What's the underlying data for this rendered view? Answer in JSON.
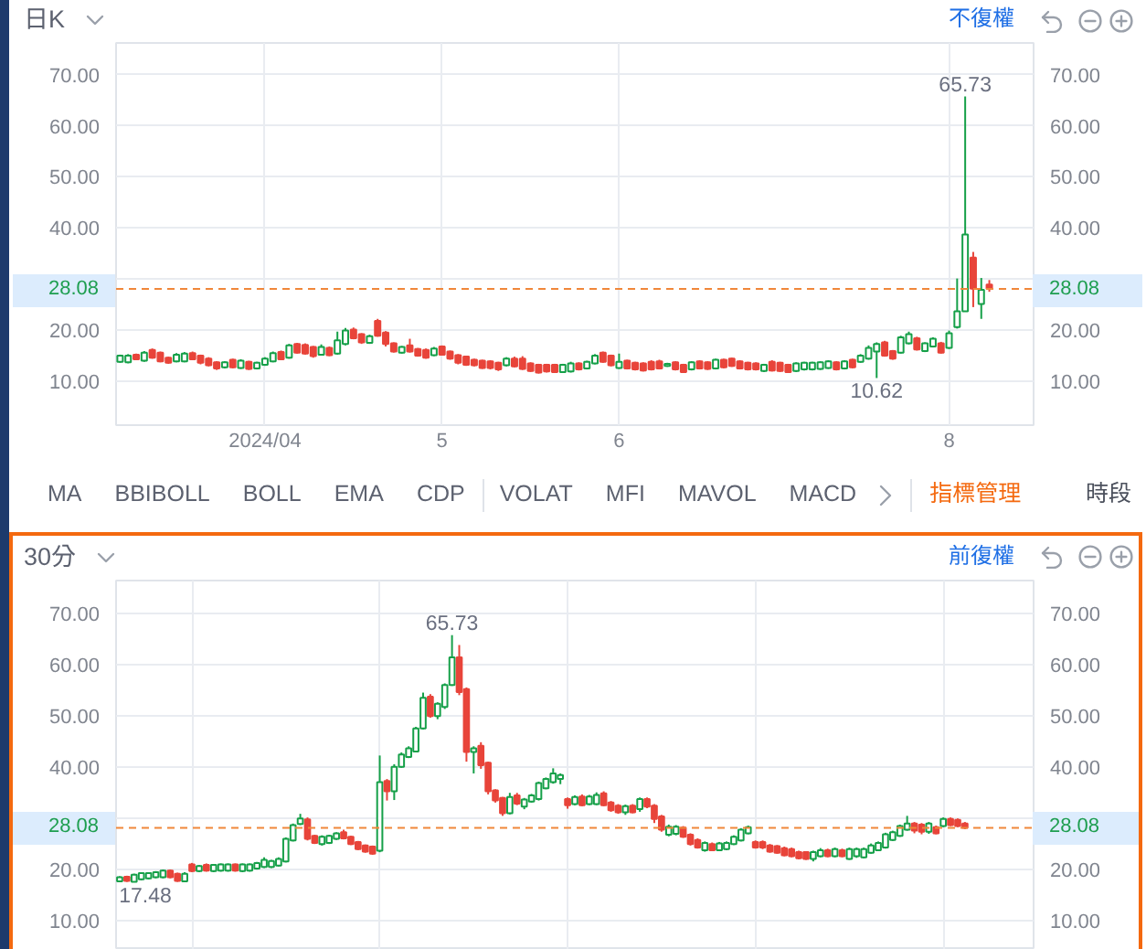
{
  "chart_data": [
    {
      "type": "candlestick",
      "title": "日K",
      "subtitle": "不復權",
      "categories": [
        null,
        null,
        null,
        null,
        null,
        null,
        null,
        null,
        null,
        null,
        null,
        null,
        null,
        null,
        null,
        null,
        null,
        null,
        "2024/04",
        null,
        null,
        null,
        null,
        null,
        null,
        null,
        null,
        null,
        null,
        null,
        null,
        null,
        null,
        null,
        null,
        null,
        null,
        null,
        null,
        null,
        "5",
        null,
        null,
        null,
        null,
        null,
        null,
        null,
        null,
        null,
        null,
        null,
        null,
        null,
        null,
        null,
        null,
        null,
        null,
        null,
        null,
        null,
        "6",
        null,
        null,
        null,
        null,
        null,
        null,
        null,
        null,
        null,
        null,
        null,
        null,
        null,
        null,
        null,
        null,
        null,
        null,
        null,
        null,
        null,
        null,
        null,
        null,
        null,
        null,
        null,
        null,
        null,
        null,
        null,
        null,
        null,
        null,
        null,
        null,
        null,
        null,
        null,
        null,
        "8",
        null,
        null,
        null,
        null,
        null,
        null,
        null,
        null,
        null,
        null
      ],
      "ohlc": [
        [
          13.8,
          15.2,
          13.6,
          15.0
        ],
        [
          13.7,
          15.3,
          13.5,
          15.0
        ],
        [
          15.2,
          15.4,
          14.1,
          14.3
        ],
        [
          14.0,
          15.9,
          13.8,
          15.6
        ],
        [
          16.1,
          16.4,
          14.4,
          14.6
        ],
        [
          15.6,
          15.8,
          13.7,
          13.9
        ],
        [
          14.6,
          14.8,
          13.4,
          13.6
        ],
        [
          13.9,
          15.5,
          13.7,
          15.2
        ],
        [
          13.9,
          15.7,
          13.7,
          15.4
        ],
        [
          15.5,
          15.8,
          14.1,
          14.3
        ],
        [
          15.0,
          15.2,
          13.3,
          13.6
        ],
        [
          14.4,
          14.7,
          12.9,
          13.1
        ],
        [
          13.7,
          13.9,
          12.2,
          12.5
        ],
        [
          12.7,
          13.9,
          12.5,
          13.7
        ],
        [
          14.2,
          14.4,
          12.5,
          12.7
        ],
        [
          12.6,
          14.3,
          12.4,
          14.0
        ],
        [
          13.8,
          14.0,
          12.2,
          12.4
        ],
        [
          12.5,
          13.8,
          12.3,
          13.6
        ],
        [
          13.2,
          14.7,
          13.0,
          14.4
        ],
        [
          13.9,
          15.8,
          13.7,
          15.5
        ],
        [
          15.7,
          16.0,
          14.1,
          14.3
        ],
        [
          14.6,
          17.3,
          14.4,
          17.0
        ],
        [
          17.3,
          17.5,
          15.4,
          15.6
        ],
        [
          17.1,
          17.4,
          15.2,
          15.4
        ],
        [
          16.7,
          16.9,
          14.6,
          14.9
        ],
        [
          15.2,
          17.2,
          15.0,
          16.7
        ],
        [
          16.5,
          16.8,
          14.9,
          15.1
        ],
        [
          15.4,
          19.7,
          15.2,
          18.0
        ],
        [
          17.3,
          20.4,
          17.0,
          19.9
        ],
        [
          20.1,
          20.5,
          18.2,
          18.4
        ],
        [
          19.2,
          19.4,
          17.3,
          17.6
        ],
        [
          17.5,
          19.1,
          17.3,
          18.8
        ],
        [
          21.8,
          22.2,
          18.7,
          18.9
        ],
        [
          19.5,
          19.8,
          16.8,
          17.3
        ],
        [
          17.4,
          17.6,
          15.6,
          15.8
        ],
        [
          15.6,
          16.9,
          15.4,
          16.7
        ],
        [
          17.0,
          18.3,
          15.6,
          15.8
        ],
        [
          16.3,
          16.5,
          14.8,
          15.0
        ],
        [
          16.1,
          16.4,
          14.4,
          14.6
        ],
        [
          15.1,
          16.7,
          14.9,
          16.4
        ],
        [
          16.8,
          17.0,
          15.0,
          15.2
        ],
        [
          15.8,
          16.0,
          14.2,
          14.4
        ],
        [
          15.1,
          15.3,
          13.3,
          13.6
        ],
        [
          14.8,
          15.0,
          13.0,
          13.2
        ],
        [
          14.2,
          14.4,
          12.9,
          13.1
        ],
        [
          14.0,
          14.2,
          12.4,
          12.6
        ],
        [
          13.9,
          14.1,
          12.3,
          12.6
        ],
        [
          13.6,
          13.8,
          12.0,
          12.3
        ],
        [
          13.1,
          14.7,
          12.9,
          14.4
        ],
        [
          14.4,
          14.8,
          12.7,
          12.9
        ],
        [
          14.4,
          14.9,
          12.2,
          12.4
        ],
        [
          13.5,
          13.7,
          11.8,
          12.0
        ],
        [
          13.2,
          13.4,
          11.5,
          11.7
        ],
        [
          13.2,
          13.4,
          11.7,
          11.9
        ],
        [
          13.2,
          13.4,
          11.6,
          11.8
        ],
        [
          11.8,
          13.4,
          11.6,
          13.2
        ],
        [
          11.9,
          13.8,
          11.7,
          13.5
        ],
        [
          13.5,
          13.7,
          12.1,
          12.3
        ],
        [
          12.5,
          14.0,
          12.3,
          13.8
        ],
        [
          13.5,
          15.3,
          13.3,
          15.0
        ],
        [
          15.6,
          15.8,
          13.6,
          13.8
        ],
        [
          15.0,
          15.2,
          12.9,
          13.1
        ],
        [
          12.6,
          15.4,
          12.4,
          13.8
        ],
        [
          14.0,
          14.2,
          12.3,
          12.5
        ],
        [
          13.6,
          13.8,
          12.1,
          12.3
        ],
        [
          13.5,
          13.7,
          11.9,
          12.1
        ],
        [
          13.8,
          14.1,
          12.1,
          12.3
        ],
        [
          13.9,
          14.2,
          12.3,
          12.5
        ],
        [
          13.0,
          13.6,
          12.8,
          13.4
        ],
        [
          13.7,
          13.9,
          12.1,
          12.3
        ],
        [
          13.2,
          13.4,
          11.6,
          11.8
        ],
        [
          12.3,
          13.9,
          12.1,
          13.7
        ],
        [
          13.9,
          14.1,
          12.3,
          12.5
        ],
        [
          13.7,
          13.9,
          12.2,
          12.4
        ],
        [
          12.5,
          14.4,
          12.3,
          14.2
        ],
        [
          14.2,
          14.4,
          12.5,
          12.7
        ],
        [
          14.4,
          14.6,
          12.8,
          13.0
        ],
        [
          13.9,
          14.1,
          12.3,
          12.5
        ],
        [
          13.6,
          13.8,
          12.1,
          12.3
        ],
        [
          13.5,
          13.7,
          12.1,
          12.3
        ],
        [
          12.0,
          13.4,
          11.8,
          13.2
        ],
        [
          13.8,
          14.1,
          11.9,
          12.1
        ],
        [
          13.6,
          13.8,
          11.8,
          12.0
        ],
        [
          13.2,
          13.4,
          11.6,
          11.8
        ],
        [
          12.0,
          13.7,
          11.8,
          13.5
        ],
        [
          12.3,
          13.8,
          12.1,
          13.6
        ],
        [
          12.3,
          13.8,
          12.1,
          13.6
        ],
        [
          12.4,
          13.9,
          12.2,
          13.7
        ],
        [
          12.6,
          14.1,
          12.4,
          13.9
        ],
        [
          13.7,
          13.9,
          12.1,
          12.3
        ],
        [
          12.5,
          14.1,
          12.3,
          13.9
        ],
        [
          14.2,
          14.4,
          12.5,
          12.7
        ],
        [
          13.8,
          15.3,
          13.6,
          15.0
        ],
        [
          14.4,
          17.0,
          14.2,
          16.5
        ],
        [
          15.8,
          17.6,
          10.62,
          17.3
        ],
        [
          17.6,
          17.9,
          14.8,
          15.0
        ],
        [
          15.9,
          16.1,
          14.2,
          14.4
        ],
        [
          15.6,
          18.9,
          15.4,
          18.6
        ],
        [
          17.4,
          19.7,
          17.2,
          19.2
        ],
        [
          18.4,
          18.7,
          16.0,
          16.2
        ],
        [
          15.9,
          17.6,
          15.7,
          17.4
        ],
        [
          16.8,
          18.6,
          16.6,
          18.3
        ],
        [
          17.4,
          17.7,
          15.4,
          15.6
        ],
        [
          16.5,
          19.9,
          16.3,
          19.4
        ],
        [
          20.6,
          30.1,
          20.3,
          23.7
        ],
        [
          23.7,
          65.73,
          23.6,
          38.7
        ],
        [
          34.2,
          35.3,
          24.5,
          28.1
        ],
        [
          25.1,
          30.2,
          22.2,
          27.9
        ],
        [
          28.9,
          29.8,
          27.5,
          28.08
        ],
        null,
        null,
        null,
        null,
        null
      ],
      "colors": [
        "#16a049",
        "#16a049",
        "#e8443a",
        "#16a049",
        "#e8443a",
        "#e8443a",
        "#e8443a",
        "#16a049",
        "#16a049",
        "#e8443a",
        "#e8443a",
        "#e8443a",
        "#e8443a",
        "#16a049",
        "#e8443a",
        "#16a049",
        "#e8443a",
        "#16a049",
        "#16a049",
        "#16a049",
        "#e8443a",
        "#16a049",
        "#e8443a",
        "#e8443a",
        "#e8443a",
        "#16a049",
        "#e8443a",
        "#16a049",
        "#16a049",
        "#e8443a",
        "#e8443a",
        "#16a049",
        "#e8443a",
        "#e8443a",
        "#e8443a",
        "#16a049",
        "#e8443a",
        "#e8443a",
        "#e8443a",
        "#16a049",
        "#e8443a",
        "#e8443a",
        "#e8443a",
        "#e8443a",
        "#e8443a",
        "#e8443a",
        "#e8443a",
        "#e8443a",
        "#16a049",
        "#e8443a",
        "#e8443a",
        "#e8443a",
        "#e8443a",
        "#e8443a",
        "#e8443a",
        "#16a049",
        "#16a049",
        "#e8443a",
        "#16a049",
        "#16a049",
        "#e8443a",
        "#e8443a",
        "#16a049",
        "#e8443a",
        "#e8443a",
        "#e8443a",
        "#e8443a",
        "#e8443a",
        "#16a049",
        "#e8443a",
        "#e8443a",
        "#16a049",
        "#e8443a",
        "#e8443a",
        "#16a049",
        "#e8443a",
        "#e8443a",
        "#e8443a",
        "#e8443a",
        "#e8443a",
        "#16a049",
        "#e8443a",
        "#e8443a",
        "#e8443a",
        "#16a049",
        "#16a049",
        "#16a049",
        "#16a049",
        "#16a049",
        "#e8443a",
        "#16a049",
        "#e8443a",
        "#16a049",
        "#16a049",
        "#16a049",
        "#e8443a",
        "#e8443a",
        "#16a049",
        "#16a049",
        "#e8443a",
        "#16a049",
        "#16a049",
        "#e8443a",
        "#16a049",
        "#16a049",
        "#16a049",
        "#e8443a",
        "#16a049",
        "#e8443a",
        null,
        null,
        null,
        null,
        null
      ],
      "ylim": [
        1.4,
        76.2
      ],
      "yticks": [
        {
          "value": 10,
          "label": "10.00"
        },
        {
          "value": 20,
          "label": "20.00"
        },
        {
          "value": 30,
          "label": null
        },
        {
          "value": 40,
          "label": "40.00"
        },
        {
          "value": 50,
          "label": "50.00"
        },
        {
          "value": 60,
          "label": "60.00"
        },
        {
          "value": 70,
          "label": "70.00"
        }
      ],
      "y2lim": [
        1.4,
        76.2
      ],
      "y2ticks": [
        {
          "value": 10,
          "label": "10.00"
        },
        {
          "value": 20,
          "label": "20.00"
        },
        {
          "value": 30,
          "label": null
        },
        {
          "value": 40,
          "label": "40.00"
        },
        {
          "value": 50,
          "label": "50.00"
        },
        {
          "value": 60,
          "label": "60.00"
        },
        {
          "value": 70,
          "label": "70.00"
        }
      ],
      "ref_lines": [
        {
          "axis": "y",
          "value": 28.08,
          "label": "28.08",
          "color": "#f0873a",
          "line_style": "dashed"
        }
      ],
      "annotations": [
        {
          "text": "65.73",
          "y": 65.73
        },
        {
          "text": "10.62",
          "y": 10.62
        }
      ],
      "grid": true
    },
    {
      "type": "other",
      "annotations": [
        "MA",
        "BBIBOLL",
        "BOLL",
        "EMA",
        "CDP",
        "VOLAT",
        "MFI",
        "MAVOL",
        "MACD",
        "指標管理",
        "時段"
      ]
    },
    {
      "type": "candlestick",
      "title": "30分",
      "subtitle": "前復權",
      "categories": [
        null,
        null,
        null,
        null,
        null,
        null,
        null,
        null,
        null,
        null,
        null,
        null,
        null,
        null,
        null,
        null,
        null,
        null,
        null,
        null,
        null,
        null,
        null,
        null,
        null,
        null,
        null,
        null,
        null,
        null,
        null,
        null,
        null,
        null,
        null,
        null,
        null,
        null,
        null,
        null,
        null,
        null,
        null,
        null,
        null,
        null,
        null,
        null,
        null,
        null,
        null,
        null,
        null,
        null,
        null,
        null,
        null,
        null,
        null,
        null,
        null,
        null,
        null,
        null,
        null,
        null,
        null,
        null,
        null,
        null,
        null,
        null,
        null,
        null,
        null,
        null,
        null,
        null,
        null,
        null,
        null,
        null,
        null,
        null,
        null,
        null,
        null,
        null,
        null,
        null,
        null,
        null,
        null,
        null,
        null,
        null,
        null,
        null,
        null,
        null,
        null,
        null,
        null,
        null,
        null,
        null,
        null,
        null,
        null,
        null,
        null,
        null,
        null,
        null,
        null,
        null,
        null,
        null,
        null,
        null,
        null,
        null,
        null,
        null,
        null,
        null,
        null
      ],
      "ohlc": [
        [
          17.6,
          18.6,
          17.48,
          18.4
        ],
        [
          18.5,
          18.7,
          17.5,
          17.7
        ],
        [
          17.5,
          19.1,
          17.5,
          18.9
        ],
        [
          18.0,
          19.4,
          17.8,
          19.2
        ],
        [
          18.2,
          19.4,
          18.0,
          19.2
        ],
        [
          18.4,
          19.6,
          18.2,
          19.4
        ],
        [
          18.4,
          19.9,
          18.2,
          19.7
        ],
        [
          19.7,
          19.9,
          18.2,
          18.4
        ],
        [
          19.1,
          19.3,
          17.5,
          17.7
        ],
        [
          17.6,
          19.4,
          17.5,
          19.1
        ],
        [
          20.9,
          21.2,
          19.4,
          19.6
        ],
        [
          19.6,
          20.8,
          19.4,
          20.6
        ],
        [
          20.8,
          21.1,
          19.5,
          19.7
        ],
        [
          19.6,
          21.0,
          19.4,
          20.8
        ],
        [
          19.7,
          21.1,
          19.5,
          20.9
        ],
        [
          19.7,
          21.1,
          19.5,
          20.9
        ],
        [
          20.9,
          21.1,
          19.5,
          19.7
        ],
        [
          19.6,
          21.1,
          19.4,
          20.9
        ],
        [
          19.7,
          21.1,
          19.5,
          20.9
        ],
        [
          20.1,
          21.4,
          19.9,
          21.2
        ],
        [
          20.4,
          22.3,
          20.2,
          21.8
        ],
        [
          20.4,
          21.8,
          20.2,
          21.6
        ],
        [
          20.7,
          22.3,
          20.5,
          22.0
        ],
        [
          21.5,
          26.2,
          21.3,
          25.9
        ],
        [
          25.6,
          28.9,
          25.4,
          28.6
        ],
        [
          28.8,
          30.8,
          28.6,
          29.9
        ],
        [
          29.7,
          30.1,
          25.6,
          25.9
        ],
        [
          26.5,
          26.7,
          24.9,
          25.1
        ],
        [
          24.9,
          26.6,
          24.6,
          26.3
        ],
        [
          25.1,
          26.7,
          24.9,
          26.5
        ],
        [
          25.9,
          27.2,
          25.7,
          27.0
        ],
        [
          27.2,
          27.7,
          25.8,
          26.0
        ],
        [
          26.3,
          26.5,
          24.7,
          24.9
        ],
        [
          25.3,
          25.5,
          23.7,
          23.9
        ],
        [
          24.6,
          24.8,
          23.2,
          23.4
        ],
        [
          24.4,
          24.6,
          22.8,
          23.0
        ],
        [
          23.6,
          42.2,
          23.3,
          37.0
        ],
        [
          37.2,
          37.6,
          33.4,
          35.2
        ],
        [
          35.2,
          40.5,
          33.5,
          40.0
        ],
        [
          40.0,
          42.8,
          39.8,
          42.4
        ],
        [
          41.9,
          44.0,
          41.7,
          43.6
        ],
        [
          43.0,
          47.8,
          42.8,
          47.5
        ],
        [
          47.5,
          54.5,
          47.3,
          53.5
        ],
        [
          53.7,
          54.2,
          49.6,
          49.9
        ],
        [
          49.9,
          52.6,
          49.3,
          52.3
        ],
        [
          51.7,
          56.3,
          51.3,
          56.0
        ],
        [
          56.0,
          65.73,
          55.8,
          61.4
        ],
        [
          61.4,
          63.8,
          54.0,
          54.6
        ],
        [
          55.2,
          55.5,
          41.0,
          42.9
        ],
        [
          42.9,
          44.0,
          38.7,
          43.6
        ],
        [
          44.1,
          44.8,
          39.6,
          40.3
        ],
        [
          40.8,
          41.0,
          34.6,
          35.2
        ],
        [
          35.4,
          35.6,
          33.0,
          33.4
        ],
        [
          33.9,
          34.1,
          30.4,
          30.9
        ],
        [
          30.9,
          34.9,
          30.7,
          34.1
        ],
        [
          34.4,
          34.9,
          32.5,
          32.8
        ],
        [
          32.2,
          33.9,
          31.7,
          33.6
        ],
        [
          33.2,
          34.7,
          33.0,
          34.4
        ],
        [
          33.7,
          37.1,
          33.4,
          36.8
        ],
        [
          35.8,
          37.9,
          35.6,
          37.6
        ],
        [
          37.0,
          39.7,
          36.7,
          38.7
        ],
        [
          37.6,
          38.7,
          36.6,
          38.4
        ],
        [
          33.7,
          34.0,
          31.8,
          32.5
        ],
        [
          32.7,
          34.4,
          32.5,
          34.1
        ],
        [
          34.2,
          34.6,
          32.3,
          32.5
        ],
        [
          32.7,
          34.5,
          32.5,
          34.2
        ],
        [
          32.7,
          35.0,
          32.5,
          34.5
        ],
        [
          34.8,
          35.2,
          32.3,
          32.5
        ],
        [
          33.0,
          33.3,
          31.2,
          31.5
        ],
        [
          32.4,
          32.7,
          30.8,
          31.1
        ],
        [
          31.1,
          32.6,
          30.6,
          32.3
        ],
        [
          32.4,
          32.7,
          30.9,
          31.1
        ],
        [
          31.7,
          34.0,
          31.2,
          33.7
        ],
        [
          33.7,
          34.0,
          31.9,
          32.2
        ],
        [
          32.4,
          32.7,
          29.0,
          29.8
        ],
        [
          30.3,
          30.6,
          27.3,
          27.7
        ],
        [
          26.7,
          28.7,
          26.4,
          28.3
        ],
        [
          26.9,
          28.6,
          26.6,
          28.3
        ],
        [
          28.1,
          28.4,
          26.1,
          26.3
        ],
        [
          26.7,
          27.0,
          24.6,
          24.9
        ],
        [
          25.7,
          26.0,
          24.0,
          24.2
        ],
        [
          23.7,
          25.4,
          23.4,
          25.1
        ],
        [
          24.9,
          25.2,
          23.5,
          23.7
        ],
        [
          23.7,
          25.3,
          23.5,
          25.0
        ],
        [
          23.9,
          25.4,
          23.7,
          25.1
        ],
        [
          24.9,
          26.6,
          24.7,
          26.3
        ],
        [
          25.6,
          28.0,
          25.4,
          27.7
        ],
        [
          27.0,
          28.5,
          26.8,
          28.2
        ],
        [
          25.3,
          25.6,
          24.0,
          24.2
        ],
        [
          25.3,
          25.6,
          23.9,
          24.2
        ],
        [
          24.6,
          24.9,
          23.2,
          23.4
        ],
        [
          24.5,
          24.7,
          23.0,
          23.2
        ],
        [
          24.1,
          24.4,
          22.5,
          22.7
        ],
        [
          23.9,
          24.2,
          22.3,
          22.5
        ],
        [
          23.3,
          23.6,
          21.9,
          22.1
        ],
        [
          23.3,
          23.5,
          21.8,
          22.0
        ],
        [
          22.0,
          23.6,
          21.5,
          23.3
        ],
        [
          22.5,
          24.1,
          22.3,
          23.7
        ],
        [
          23.7,
          24.0,
          22.3,
          22.5
        ],
        [
          22.5,
          24.2,
          22.3,
          23.9
        ],
        [
          23.7,
          24.0,
          22.3,
          22.5
        ],
        [
          22.0,
          24.2,
          21.8,
          23.9
        ],
        [
          22.5,
          24.2,
          22.2,
          23.9
        ],
        [
          22.3,
          24.2,
          22.1,
          23.9
        ],
        [
          23.2,
          25.0,
          23.0,
          24.6
        ],
        [
          23.7,
          25.4,
          23.5,
          25.1
        ],
        [
          24.2,
          27.1,
          24.0,
          26.8
        ],
        [
          25.7,
          27.5,
          25.5,
          27.2
        ],
        [
          26.5,
          28.7,
          26.3,
          28.4
        ],
        [
          27.7,
          30.4,
          27.5,
          28.9
        ],
        [
          28.9,
          29.2,
          27.0,
          27.5
        ],
        [
          28.7,
          29.0,
          26.8,
          27.3
        ],
        [
          27.3,
          29.2,
          26.9,
          28.9
        ],
        [
          28.2,
          28.5,
          26.8,
          27.0
        ],
        [
          28.4,
          30.1,
          28.2,
          29.8
        ],
        [
          29.8,
          30.1,
          28.4,
          28.6
        ],
        [
          29.6,
          29.9,
          28.2,
          28.4
        ],
        [
          28.9,
          29.2,
          27.8,
          28.08
        ],
        null,
        null,
        null,
        null,
        null,
        null,
        null,
        null,
        null
      ],
      "colors": [
        "#16a049",
        "#e8443a",
        "#16a049",
        "#16a049",
        "#16a049",
        "#16a049",
        "#16a049",
        "#e8443a",
        "#e8443a",
        "#16a049",
        "#e8443a",
        "#16a049",
        "#e8443a",
        "#16a049",
        "#16a049",
        "#16a049",
        "#e8443a",
        "#16a049",
        "#16a049",
        "#16a049",
        "#16a049",
        "#16a049",
        "#16a049",
        "#16a049",
        "#16a049",
        "#16a049",
        "#e8443a",
        "#e8443a",
        "#16a049",
        "#16a049",
        "#16a049",
        "#e8443a",
        "#e8443a",
        "#e8443a",
        "#e8443a",
        "#e8443a",
        "#16a049",
        "#e8443a",
        "#16a049",
        "#16a049",
        "#16a049",
        "#16a049",
        "#16a049",
        "#e8443a",
        "#16a049",
        "#16a049",
        "#16a049",
        "#e8443a",
        "#e8443a",
        "#16a049",
        "#e8443a",
        "#e8443a",
        "#e8443a",
        "#e8443a",
        "#16a049",
        "#e8443a",
        "#16a049",
        "#16a049",
        "#16a049",
        "#16a049",
        "#16a049",
        "#16a049",
        "#e8443a",
        "#16a049",
        "#e8443a",
        "#16a049",
        "#16a049",
        "#e8443a",
        "#e8443a",
        "#e8443a",
        "#16a049",
        "#e8443a",
        "#16a049",
        "#e8443a",
        "#e8443a",
        "#e8443a",
        "#16a049",
        "#16a049",
        "#e8443a",
        "#e8443a",
        "#e8443a",
        "#16a049",
        "#e8443a",
        "#16a049",
        "#16a049",
        "#16a049",
        "#16a049",
        "#16a049",
        "#e8443a",
        "#e8443a",
        "#e8443a",
        "#e8443a",
        "#e8443a",
        "#e8443a",
        "#e8443a",
        "#e8443a",
        "#16a049",
        "#16a049",
        "#e8443a",
        "#16a049",
        "#e8443a",
        "#16a049",
        "#16a049",
        "#16a049",
        "#16a049",
        "#16a049",
        "#16a049",
        "#16a049",
        "#16a049",
        "#16a049",
        "#e8443a",
        "#e8443a",
        "#16a049",
        "#e8443a",
        "#16a049",
        "#e8443a",
        "#e8443a",
        "#e8443a",
        null,
        null,
        null,
        null,
        null,
        null,
        null,
        null,
        null
      ],
      "ylim": [
        4.2,
        76.4
      ],
      "yticks": [
        {
          "value": 10,
          "label": "10.00"
        },
        {
          "value": 20,
          "label": "20.00"
        },
        {
          "value": 30,
          "label": null
        },
        {
          "value": 40,
          "label": "40.00"
        },
        {
          "value": 50,
          "label": "50.00"
        },
        {
          "value": 60,
          "label": "60.00"
        },
        {
          "value": 70,
          "label": "70.00"
        }
      ],
      "y2lim": [
        4.2,
        76.4
      ],
      "y2ticks": [
        {
          "value": 10,
          "label": "10.00"
        },
        {
          "value": 20,
          "label": "20.00"
        },
        {
          "value": 30,
          "label": null
        },
        {
          "value": 40,
          "label": "40.00"
        },
        {
          "value": 50,
          "label": "50.00"
        },
        {
          "value": 60,
          "label": "60.00"
        },
        {
          "value": 70,
          "label": "70.00"
        }
      ],
      "ref_lines": [
        {
          "axis": "y",
          "value": 28.08,
          "label": "28.08",
          "color": "#f0873a",
          "line_style": "dashed"
        }
      ],
      "annotations": [
        {
          "text": "65.73",
          "y": 65.73
        },
        {
          "text": "17.48",
          "y": 17.48
        }
      ],
      "grid": true,
      "tick_labels": "y"
    }
  ]
}
